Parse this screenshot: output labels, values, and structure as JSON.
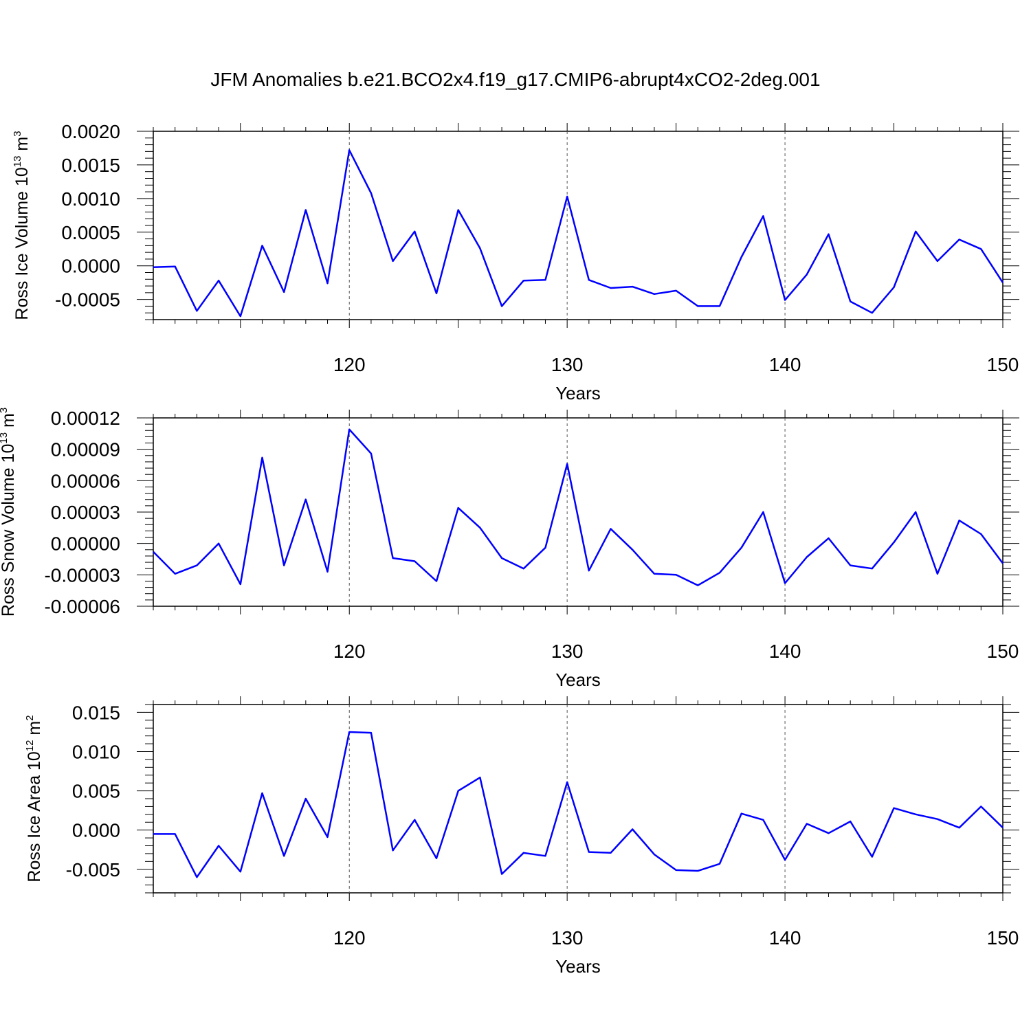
{
  "title": "JFM Anomalies b.e21.BCO2x4.f19_g17.CMIP6-abrupt4xCO2-2deg.001",
  "line_color": "#0000ff",
  "chart_data": [
    {
      "type": "line",
      "xlabel": "Years",
      "ylabel": "Ross Ice Volume 10",
      "ylabel_exp": "13",
      "ylabel_unit": "m",
      "ylabel_unit_exp": "3",
      "xlim": [
        111,
        150
      ],
      "ylim": [
        -0.0008,
        0.002
      ],
      "xticks": [
        120,
        130,
        140,
        150
      ],
      "yticks": [
        "0.0020",
        "0.0015",
        "0.0010",
        "0.0005",
        "0.0000",
        "-0.0005"
      ],
      "ytick_values": [
        0.002,
        0.0015,
        0.001,
        0.0005,
        0.0,
        -0.0005
      ],
      "grid_x": [
        120,
        130,
        140
      ],
      "x": [
        111,
        112,
        113,
        114,
        115,
        116,
        117,
        118,
        119,
        120,
        121,
        122,
        123,
        124,
        125,
        126,
        127,
        128,
        129,
        130,
        131,
        132,
        133,
        134,
        135,
        136,
        137,
        138,
        139,
        140,
        141,
        142,
        143,
        144,
        145,
        146,
        147,
        148,
        149,
        150
      ],
      "series": [
        {
          "values": [
            -2e-05,
            -1e-05,
            -0.00067,
            -0.00022,
            -0.00075,
            0.0003,
            -0.00039,
            0.00083,
            -0.00026,
            0.00172,
            0.00108,
            7e-05,
            0.00051,
            -0.00041,
            0.00083,
            0.00026,
            -0.0006,
            -0.00022,
            -0.00021,
            0.00103,
            -0.00021,
            -0.00033,
            -0.00031,
            -0.00042,
            -0.00037,
            -0.0006,
            -0.0006,
            0.00013,
            0.00074,
            -0.00051,
            -0.00013,
            0.00047,
            -0.00053,
            -0.0007,
            -0.00032,
            0.00051,
            7e-05,
            0.00039,
            0.00025,
            -0.00025
          ]
        }
      ]
    },
    {
      "type": "line",
      "xlabel": "Years",
      "ylabel": "Ross Snow Volume 10",
      "ylabel_exp": "13",
      "ylabel_unit": "m",
      "ylabel_unit_exp": "3",
      "xlim": [
        111,
        150
      ],
      "ylim": [
        -6e-05,
        0.00012
      ],
      "xticks": [
        120,
        130,
        140,
        150
      ],
      "yticks": [
        "0.00012",
        "0.00009",
        "0.00006",
        "0.00003",
        "0.00000",
        "-0.00003",
        "-0.00006"
      ],
      "ytick_values": [
        0.00012,
        9e-05,
        6e-05,
        3e-05,
        0.0,
        -3e-05,
        -6e-05
      ],
      "grid_x": [
        120,
        130,
        140
      ],
      "x": [
        111,
        112,
        113,
        114,
        115,
        116,
        117,
        118,
        119,
        120,
        121,
        122,
        123,
        124,
        125,
        126,
        127,
        128,
        129,
        130,
        131,
        132,
        133,
        134,
        135,
        136,
        137,
        138,
        139,
        140,
        141,
        142,
        143,
        144,
        145,
        146,
        147,
        148,
        149,
        150
      ],
      "series": [
        {
          "values": [
            -8e-06,
            -2.9e-05,
            -2.1e-05,
            0.0,
            -3.9e-05,
            8.2e-05,
            -2.1e-05,
            4.2e-05,
            -2.7e-05,
            0.000109,
            8.6e-05,
            -1.4e-05,
            -1.7e-05,
            -3.6e-05,
            3.4e-05,
            1.5e-05,
            -1.4e-05,
            -2.4e-05,
            -4e-06,
            7.6e-05,
            -2.6e-05,
            1.4e-05,
            -6e-06,
            -2.9e-05,
            -3e-05,
            -4e-05,
            -2.8e-05,
            -4e-06,
            3e-05,
            -3.8e-05,
            -1.3e-05,
            5e-06,
            -2.1e-05,
            -2.4e-05,
            1e-06,
            3e-05,
            -2.9e-05,
            2.2e-05,
            9e-06,
            -1.9e-05
          ]
        }
      ]
    },
    {
      "type": "line",
      "xlabel": "Years",
      "ylabel": "Ross Ice Area 10",
      "ylabel_exp": "12",
      "ylabel_unit": "m",
      "ylabel_unit_exp": "2",
      "xlim": [
        111,
        150
      ],
      "ylim": [
        -0.008,
        0.016
      ],
      "xticks": [
        120,
        130,
        140,
        150
      ],
      "yticks": [
        "0.015",
        "0.010",
        "0.005",
        "0.000",
        "-0.005"
      ],
      "ytick_values": [
        0.015,
        0.01,
        0.005,
        0.0,
        -0.005
      ],
      "grid_x": [
        120,
        130,
        140
      ],
      "x": [
        111,
        112,
        113,
        114,
        115,
        116,
        117,
        118,
        119,
        120,
        121,
        122,
        123,
        124,
        125,
        126,
        127,
        128,
        129,
        130,
        131,
        132,
        133,
        134,
        135,
        136,
        137,
        138,
        139,
        140,
        141,
        142,
        143,
        144,
        145,
        146,
        147,
        148,
        149,
        150
      ],
      "series": [
        {
          "values": [
            -0.0005,
            -0.0005,
            -0.006,
            -0.002,
            -0.0053,
            0.0047,
            -0.0033,
            0.004,
            -0.0009,
            0.0125,
            0.0124,
            -0.0026,
            0.0013,
            -0.0036,
            0.005,
            0.0067,
            -0.0056,
            -0.0029,
            -0.0033,
            0.0061,
            -0.0028,
            -0.0029,
            0.0001,
            -0.0031,
            -0.0051,
            -0.0052,
            -0.0043,
            0.0021,
            0.0013,
            -0.0038,
            0.0008,
            -0.0004,
            0.0011,
            -0.0034,
            0.0028,
            0.002,
            0.0014,
            0.0003,
            0.003,
            0.0003
          ]
        }
      ]
    }
  ]
}
